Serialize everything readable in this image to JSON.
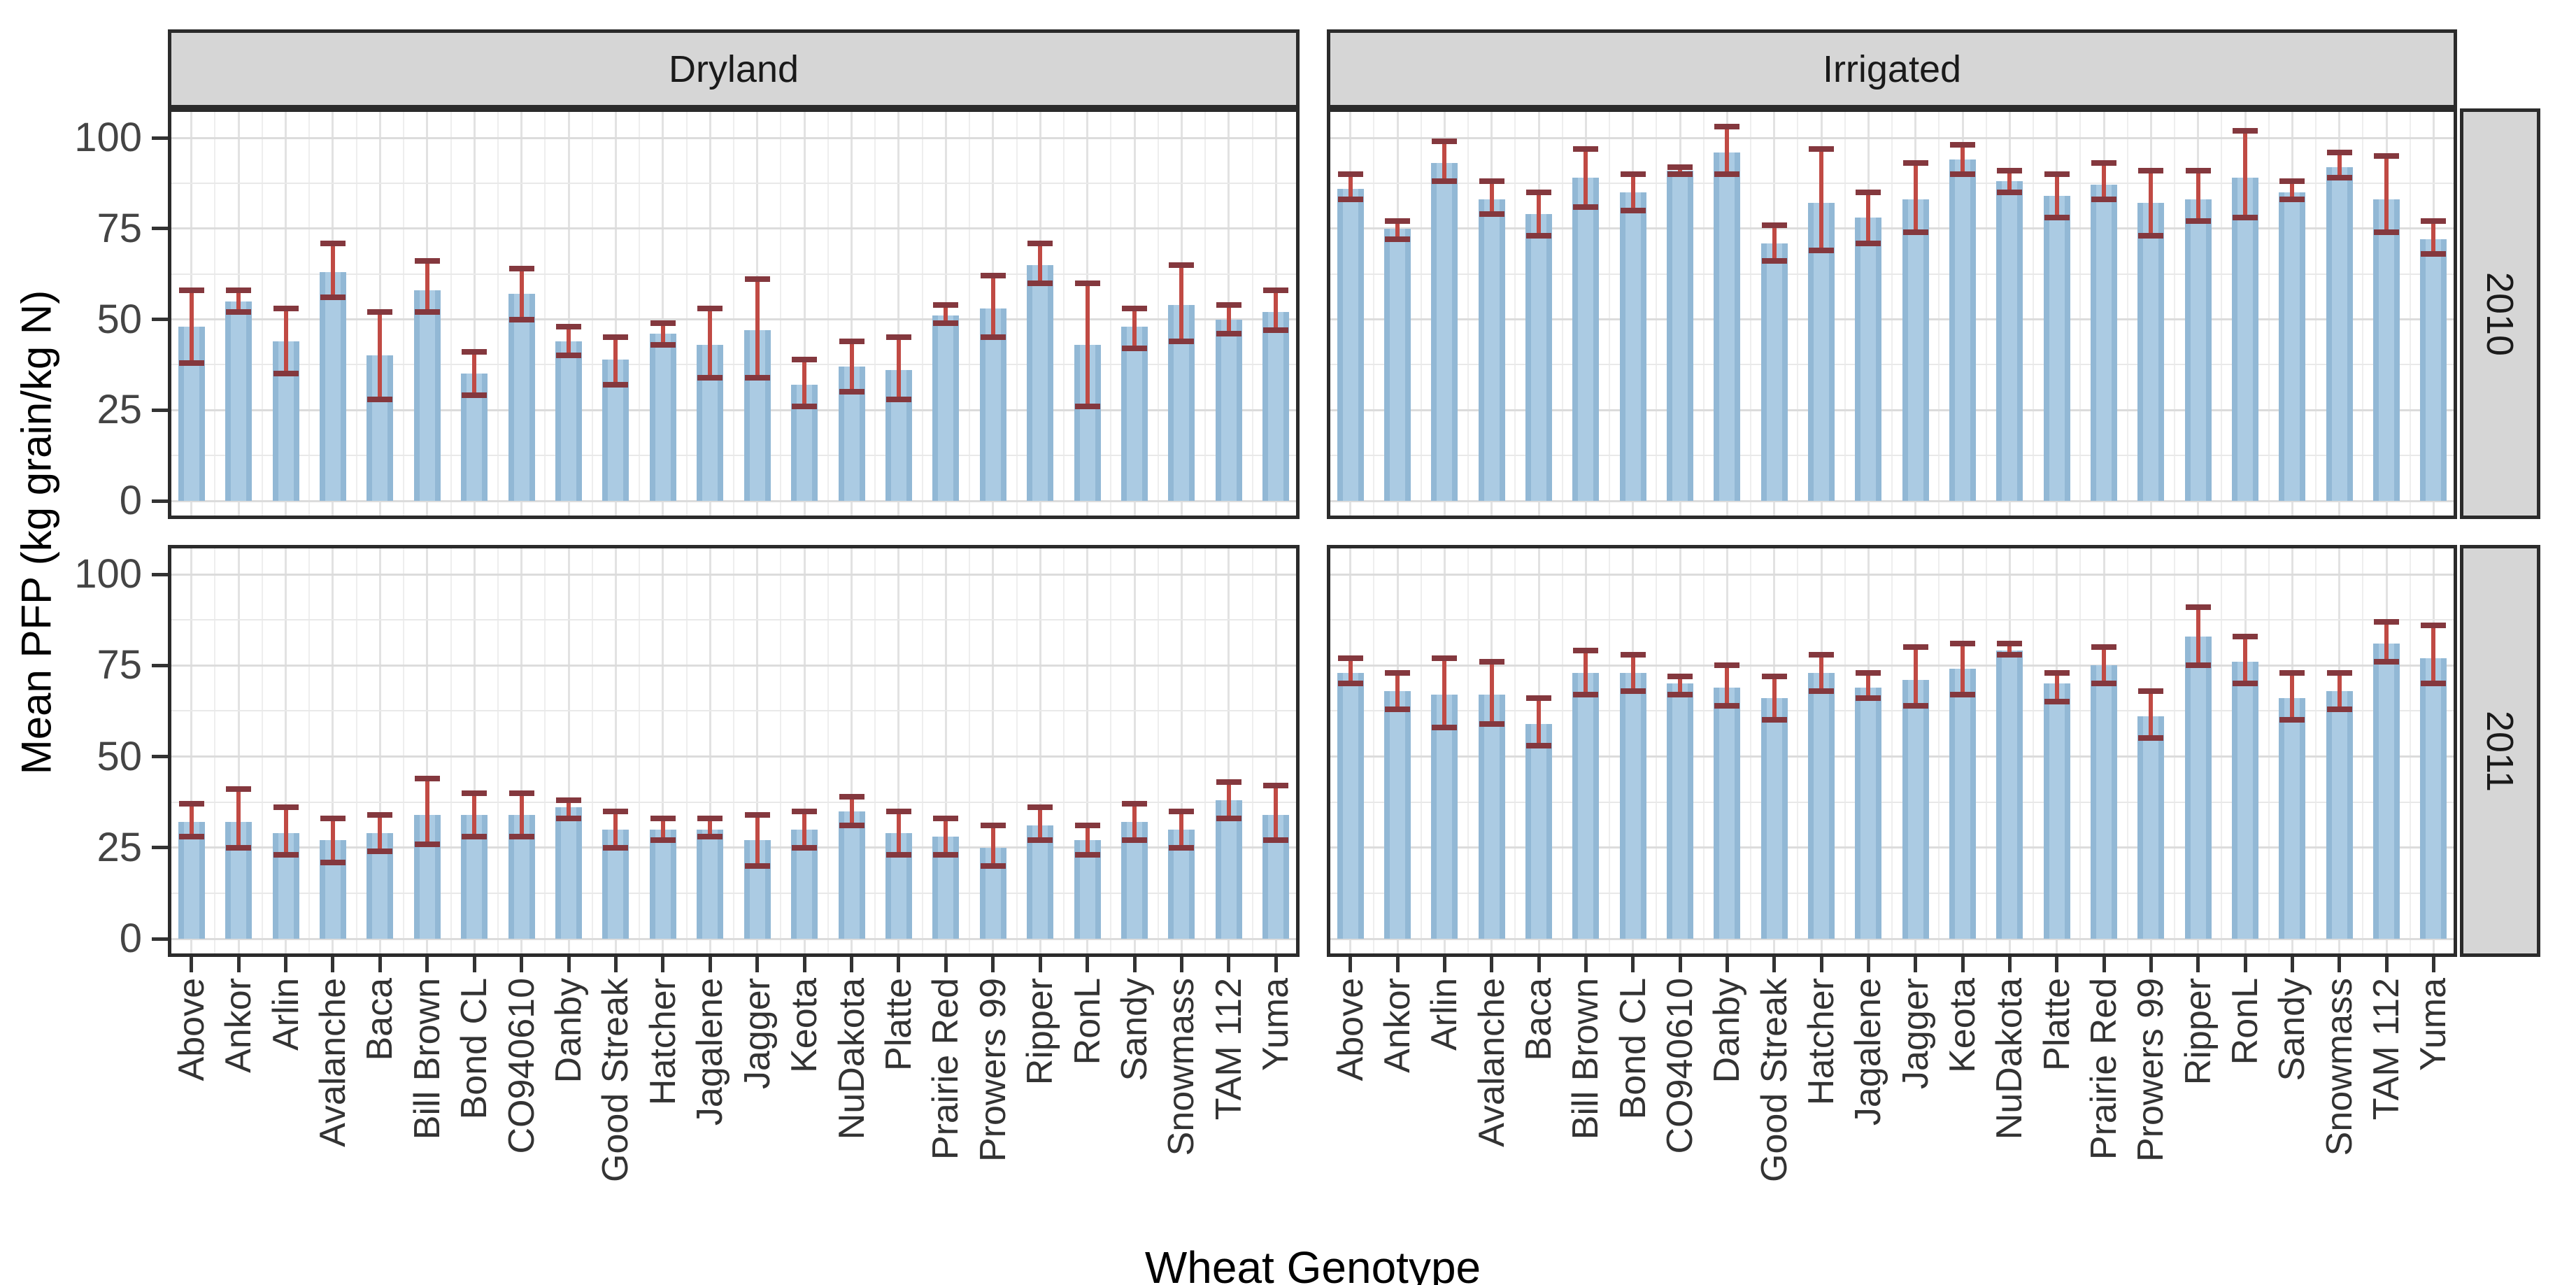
{
  "figure": {
    "y_axis_title": "Mean PFP (kg grain/kg N)",
    "x_axis_title": "Wheat Genotype"
  },
  "chart_data": {
    "type": "bar",
    "title": "",
    "xlabel": "Wheat Genotype",
    "ylabel": "Mean PFP (kg grain/kg N)",
    "ylim": [
      0,
      108
    ],
    "y_ticks": [
      0,
      25,
      50,
      75,
      100
    ],
    "grid": true,
    "error_bars": true,
    "legend": "none",
    "col_facets": [
      "Dryland",
      "Irrigated"
    ],
    "row_facets": [
      "2010",
      "2011"
    ],
    "categories": [
      "Above",
      "Ankor",
      "Arlin",
      "Avalanche",
      "Baca",
      "Bill Brown",
      "Bond CL",
      "CO940610",
      "Danby",
      "Good Streak",
      "Hatcher",
      "Jagalene",
      "Jagger",
      "Keota",
      "NuDakota",
      "Platte",
      "Prairie Red",
      "Prowers 99",
      "Ripper",
      "RonL",
      "Sandy",
      "Snowmass",
      "TAM 112",
      "Yuma"
    ],
    "facets": [
      {
        "treatment": "Dryland",
        "year": "2010",
        "means": [
          48,
          55,
          44,
          63,
          40,
          58,
          35,
          57,
          44,
          39,
          46,
          43,
          47,
          32,
          37,
          36,
          51,
          53,
          65,
          43,
          48,
          54,
          50,
          52
        ],
        "err_low": [
          38,
          52,
          35,
          56,
          28,
          52,
          29,
          50,
          40,
          32,
          43,
          34,
          34,
          26,
          30,
          28,
          49,
          45,
          60,
          26,
          42,
          44,
          46,
          47
        ],
        "err_high": [
          58,
          58,
          53,
          71,
          52,
          66,
          41,
          64,
          48,
          45,
          49,
          53,
          61,
          39,
          44,
          45,
          54,
          62,
          71,
          60,
          53,
          65,
          54,
          58
        ]
      },
      {
        "treatment": "Irrigated",
        "year": "2010",
        "means": [
          86,
          75,
          93,
          83,
          79,
          89,
          85,
          91,
          96,
          71,
          82,
          78,
          83,
          94,
          88,
          84,
          87,
          82,
          83,
          89,
          85,
          92,
          83,
          72
        ],
        "err_low": [
          83,
          72,
          88,
          79,
          73,
          81,
          80,
          90,
          90,
          66,
          69,
          71,
          74,
          90,
          85,
          78,
          83,
          73,
          77,
          78,
          83,
          89,
          74,
          68
        ],
        "err_high": [
          90,
          77,
          99,
          88,
          85,
          97,
          90,
          92,
          103,
          76,
          97,
          85,
          93,
          98,
          91,
          90,
          93,
          91,
          91,
          102,
          88,
          96,
          95,
          77
        ]
      },
      {
        "treatment": "Dryland",
        "year": "2011",
        "means": [
          32,
          32,
          29,
          27,
          29,
          34,
          34,
          34,
          36,
          30,
          30,
          30,
          27,
          30,
          35,
          29,
          28,
          25,
          31,
          27,
          32,
          30,
          38,
          34
        ],
        "err_low": [
          28,
          25,
          23,
          21,
          24,
          26,
          28,
          28,
          33,
          25,
          27,
          28,
          20,
          25,
          31,
          23,
          23,
          20,
          27,
          23,
          27,
          25,
          33,
          27
        ],
        "err_high": [
          37,
          41,
          36,
          33,
          34,
          44,
          40,
          40,
          38,
          35,
          33,
          33,
          34,
          35,
          39,
          35,
          33,
          31,
          36,
          31,
          37,
          35,
          43,
          42
        ]
      },
      {
        "treatment": "Irrigated",
        "year": "2011",
        "means": [
          73,
          68,
          67,
          67,
          59,
          73,
          73,
          70,
          69,
          66,
          73,
          69,
          71,
          74,
          79,
          70,
          75,
          61,
          83,
          76,
          66,
          68,
          81,
          77
        ],
        "err_low": [
          70,
          63,
          58,
          59,
          53,
          67,
          68,
          67,
          64,
          60,
          68,
          66,
          64,
          67,
          78,
          65,
          70,
          55,
          75,
          70,
          60,
          63,
          76,
          70
        ],
        "err_high": [
          77,
          73,
          77,
          76,
          66,
          79,
          78,
          72,
          75,
          72,
          78,
          73,
          80,
          81,
          81,
          73,
          80,
          68,
          91,
          83,
          73,
          73,
          87,
          86
        ]
      }
    ]
  },
  "colors": {
    "bar_fill": "#abcbe3",
    "bar_edge": "#92b8d5",
    "error_stem": "#c04a44",
    "error_cap": "#84383e",
    "strip_bg": "#d6d6d6",
    "strip_text": "#1a1a1a",
    "panel_bg": "#ffffff",
    "panel_border": "#2b2b2b",
    "grid_major": "#dcdcdc",
    "grid_minor": "#e9e9e9",
    "grid_major_v": "#e2e2e2",
    "grid_minor_v": "#eeeeee",
    "axis_tick": "#333333",
    "tick_label": "#444444",
    "category_label": "#333333",
    "title_text": "#000000"
  }
}
